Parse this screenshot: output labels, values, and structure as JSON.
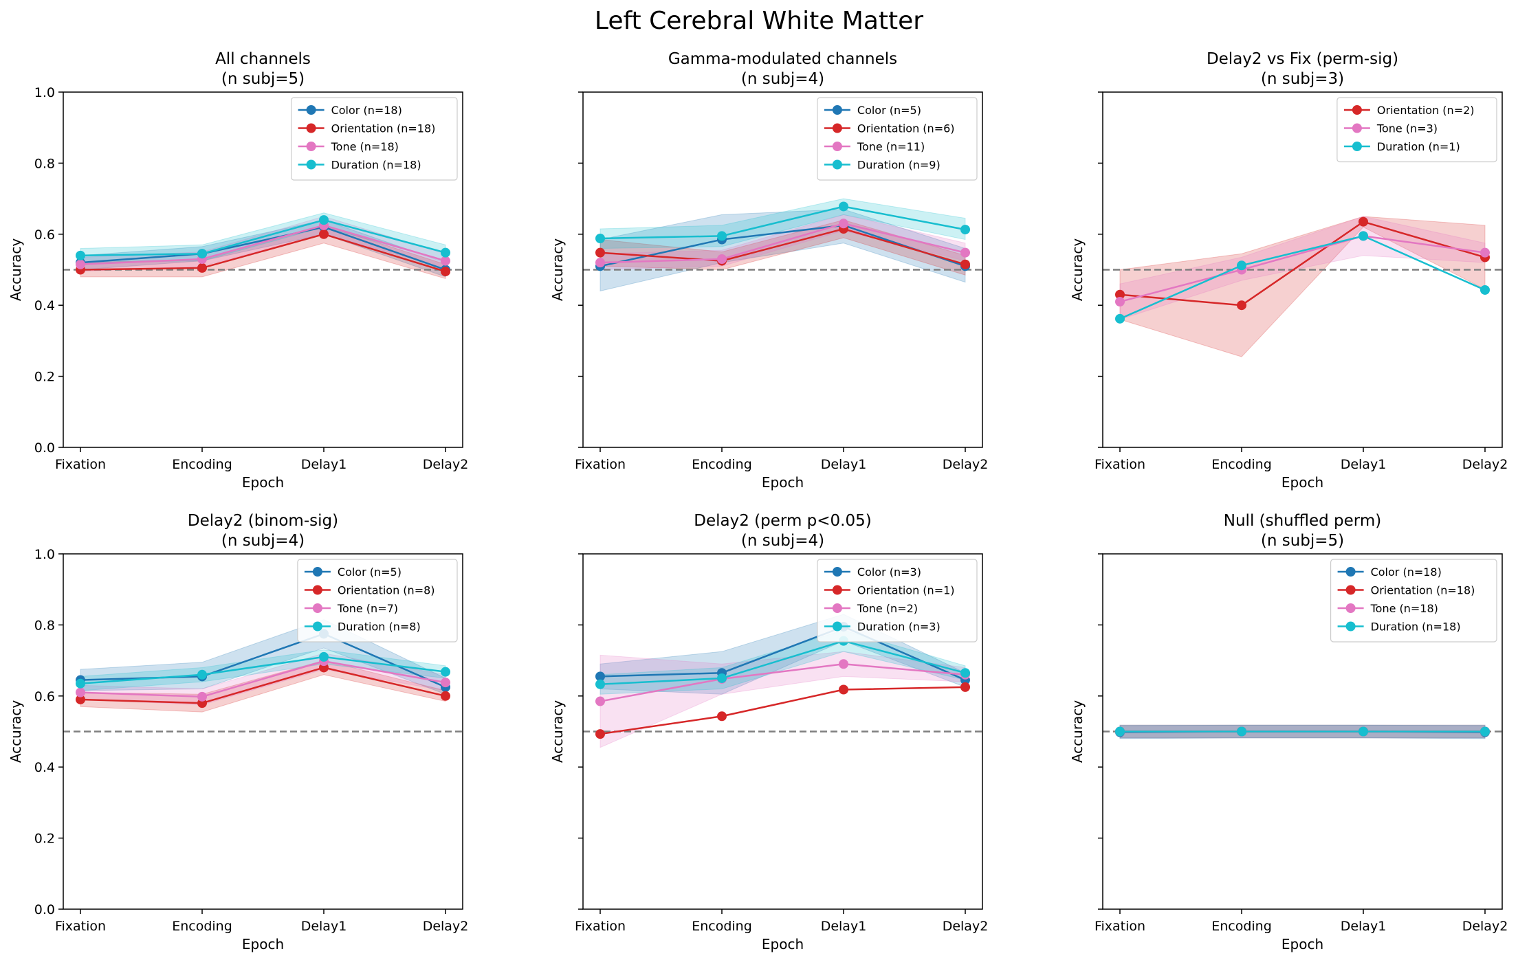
{
  "figure": {
    "suptitle": "Left Cerebral White Matter"
  },
  "colors": {
    "Color": "#1f77b4",
    "Orientation": "#d62728",
    "Tone": "#e377c2",
    "Duration": "#17becf",
    "chance_line": "#7f7f7f"
  },
  "chart_data": [
    {
      "type": "line",
      "title": "All channels",
      "subtitle": "(n subj=5)",
      "xlabel": "Epoch",
      "ylabel": "Accuracy",
      "categories": [
        "Fixation",
        "Encoding",
        "Delay1",
        "Delay2"
      ],
      "ylim": [
        0,
        1
      ],
      "yticks": [
        "0.0",
        "0.2",
        "0.4",
        "0.6",
        "0.8",
        "1.0"
      ],
      "chance": 0.5,
      "legend_position": "top-right",
      "series": [
        {
          "name": "Color (n=18)",
          "key": "Color",
          "values": [
            0.52,
            0.545,
            0.62,
            0.5
          ],
          "lower": [
            0.5,
            0.525,
            0.6,
            0.48
          ],
          "upper": [
            0.54,
            0.565,
            0.64,
            0.52
          ]
        },
        {
          "name": "Orientation (n=18)",
          "key": "Orientation",
          "values": [
            0.5,
            0.505,
            0.6,
            0.495
          ],
          "lower": [
            0.48,
            0.48,
            0.575,
            0.475
          ],
          "upper": [
            0.52,
            0.53,
            0.625,
            0.515
          ]
        },
        {
          "name": "Tone (n=18)",
          "key": "Tone",
          "values": [
            0.515,
            0.53,
            0.625,
            0.525
          ],
          "lower": [
            0.495,
            0.51,
            0.6,
            0.505
          ],
          "upper": [
            0.535,
            0.55,
            0.65,
            0.545
          ]
        },
        {
          "name": "Duration (n=18)",
          "key": "Duration",
          "values": [
            0.54,
            0.545,
            0.64,
            0.548
          ],
          "lower": [
            0.52,
            0.525,
            0.62,
            0.525
          ],
          "upper": [
            0.56,
            0.57,
            0.66,
            0.57
          ]
        }
      ]
    },
    {
      "type": "line",
      "title": "Gamma-modulated channels",
      "subtitle": "(n subj=4)",
      "xlabel": "Epoch",
      "ylabel": "Accuracy",
      "categories": [
        "Fixation",
        "Encoding",
        "Delay1",
        "Delay2"
      ],
      "ylim": [
        0,
        1
      ],
      "yticks": [],
      "chance": 0.5,
      "legend_position": "top-right",
      "series": [
        {
          "name": "Color (n=5)",
          "key": "Color",
          "values": [
            0.51,
            0.585,
            0.625,
            0.51
          ],
          "lower": [
            0.44,
            0.52,
            0.575,
            0.465
          ],
          "upper": [
            0.585,
            0.655,
            0.67,
            0.56
          ]
        },
        {
          "name": "Orientation (n=6)",
          "key": "Orientation",
          "values": [
            0.548,
            0.525,
            0.615,
            0.515
          ],
          "lower": [
            0.51,
            0.5,
            0.59,
            0.485
          ],
          "upper": [
            0.585,
            0.55,
            0.64,
            0.54
          ]
        },
        {
          "name": "Tone (n=11)",
          "key": "Tone",
          "values": [
            0.52,
            0.53,
            0.63,
            0.548
          ],
          "lower": [
            0.5,
            0.51,
            0.61,
            0.525
          ],
          "upper": [
            0.545,
            0.555,
            0.655,
            0.575
          ]
        },
        {
          "name": "Duration (n=9)",
          "key": "Duration",
          "values": [
            0.588,
            0.595,
            0.678,
            0.613
          ],
          "lower": [
            0.56,
            0.565,
            0.655,
            0.585
          ],
          "upper": [
            0.615,
            0.625,
            0.7,
            0.645
          ]
        }
      ]
    },
    {
      "type": "line",
      "title": "Delay2 vs Fix (perm-sig)",
      "subtitle": "(n subj=3)",
      "xlabel": "Epoch",
      "ylabel": "Accuracy",
      "categories": [
        "Fixation",
        "Encoding",
        "Delay1",
        "Delay2"
      ],
      "ylim": [
        0,
        1
      ],
      "yticks": [],
      "chance": 0.5,
      "legend_position": "top-right",
      "series": [
        {
          "name": "Orientation (n=2)",
          "key": "Orientation",
          "values": [
            0.43,
            0.4,
            0.635,
            0.535
          ],
          "lower": [
            0.36,
            0.255,
            0.62,
            0.445
          ],
          "upper": [
            0.5,
            0.545,
            0.65,
            0.625
          ]
        },
        {
          "name": "Tone (n=3)",
          "key": "Tone",
          "values": [
            0.41,
            0.5,
            0.595,
            0.548
          ],
          "lower": [
            0.36,
            0.47,
            0.54,
            0.52
          ],
          "upper": [
            0.46,
            0.535,
            0.65,
            0.575
          ]
        },
        {
          "name": "Duration (n=1)",
          "key": "Duration",
          "values": [
            0.362,
            0.512,
            0.595,
            0.443
          ],
          "lower": null,
          "upper": null
        }
      ]
    },
    {
      "type": "line",
      "title": "Delay2 (binom-sig)",
      "subtitle": "(n subj=4)",
      "xlabel": "Epoch",
      "ylabel": "Accuracy",
      "categories": [
        "Fixation",
        "Encoding",
        "Delay1",
        "Delay2"
      ],
      "ylim": [
        0,
        1
      ],
      "yticks": [
        "0.0",
        "0.2",
        "0.4",
        "0.6",
        "0.8",
        "1.0"
      ],
      "chance": 0.5,
      "legend_position": "top-right",
      "series": [
        {
          "name": "Color (n=5)",
          "key": "Color",
          "values": [
            0.645,
            0.655,
            0.775,
            0.625
          ],
          "lower": [
            0.615,
            0.62,
            0.735,
            0.605
          ],
          "upper": [
            0.675,
            0.695,
            0.815,
            0.65
          ]
        },
        {
          "name": "Orientation (n=8)",
          "key": "Orientation",
          "values": [
            0.59,
            0.58,
            0.68,
            0.6
          ],
          "lower": [
            0.57,
            0.555,
            0.66,
            0.585
          ],
          "upper": [
            0.61,
            0.605,
            0.7,
            0.615
          ]
        },
        {
          "name": "Tone (n=7)",
          "key": "Tone",
          "values": [
            0.61,
            0.598,
            0.698,
            0.638
          ],
          "lower": [
            0.59,
            0.575,
            0.675,
            0.615
          ],
          "upper": [
            0.63,
            0.62,
            0.72,
            0.66
          ]
        },
        {
          "name": "Duration (n=8)",
          "key": "Duration",
          "values": [
            0.635,
            0.66,
            0.71,
            0.668
          ],
          "lower": [
            0.615,
            0.64,
            0.69,
            0.65
          ],
          "upper": [
            0.655,
            0.68,
            0.73,
            0.685
          ]
        }
      ]
    },
    {
      "type": "line",
      "title": "Delay2 (perm p<0.05)",
      "subtitle": "(n subj=4)",
      "xlabel": "Epoch",
      "ylabel": "Accuracy",
      "categories": [
        "Fixation",
        "Encoding",
        "Delay1",
        "Delay2"
      ],
      "ylim": [
        0,
        1
      ],
      "yticks": [],
      "chance": 0.5,
      "legend_position": "top-right",
      "series": [
        {
          "name": "Color (n=3)",
          "key": "Color",
          "values": [
            0.655,
            0.665,
            0.795,
            0.645
          ],
          "lower": [
            0.62,
            0.605,
            0.755,
            0.625
          ],
          "upper": [
            0.69,
            0.725,
            0.83,
            0.665
          ]
        },
        {
          "name": "Orientation (n=1)",
          "key": "Orientation",
          "values": [
            0.493,
            0.543,
            0.618,
            0.625
          ],
          "lower": null,
          "upper": null
        },
        {
          "name": "Tone (n=2)",
          "key": "Tone",
          "values": [
            0.585,
            0.648,
            0.69,
            0.66
          ],
          "lower": [
            0.455,
            0.605,
            0.655,
            0.64
          ],
          "upper": [
            0.715,
            0.69,
            0.725,
            0.68
          ]
        },
        {
          "name": "Duration (n=3)",
          "key": "Duration",
          "values": [
            0.633,
            0.65,
            0.755,
            0.665
          ],
          "lower": [
            0.605,
            0.62,
            0.725,
            0.645
          ],
          "upper": [
            0.66,
            0.68,
            0.785,
            0.685
          ]
        }
      ]
    },
    {
      "type": "line",
      "title": "Null (shuffled perm)",
      "subtitle": "(n subj=5)",
      "xlabel": "Epoch",
      "ylabel": "Accuracy",
      "categories": [
        "Fixation",
        "Encoding",
        "Delay1",
        "Delay2"
      ],
      "ylim": [
        0,
        1
      ],
      "yticks": [],
      "chance": 0.5,
      "legend_position": "top-right",
      "series": [
        {
          "name": "Color (n=18)",
          "key": "Color",
          "values": [
            0.498,
            0.5,
            0.5,
            0.498
          ],
          "lower": [
            0.48,
            0.482,
            0.482,
            0.48
          ],
          "upper": [
            0.516,
            0.518,
            0.518,
            0.516
          ]
        },
        {
          "name": "Orientation (n=18)",
          "key": "Orientation",
          "values": [
            0.5,
            0.5,
            0.5,
            0.5
          ],
          "lower": [
            0.482,
            0.482,
            0.482,
            0.482
          ],
          "upper": [
            0.518,
            0.518,
            0.518,
            0.518
          ]
        },
        {
          "name": "Tone (n=18)",
          "key": "Tone",
          "values": [
            0.5,
            0.5,
            0.5,
            0.5
          ],
          "lower": [
            0.482,
            0.482,
            0.482,
            0.482
          ],
          "upper": [
            0.518,
            0.518,
            0.518,
            0.518
          ]
        },
        {
          "name": "Duration (n=18)",
          "key": "Duration",
          "values": [
            0.5,
            0.5,
            0.5,
            0.5
          ],
          "lower": [
            0.482,
            0.482,
            0.482,
            0.482
          ],
          "upper": [
            0.518,
            0.518,
            0.518,
            0.518
          ]
        }
      ]
    }
  ]
}
